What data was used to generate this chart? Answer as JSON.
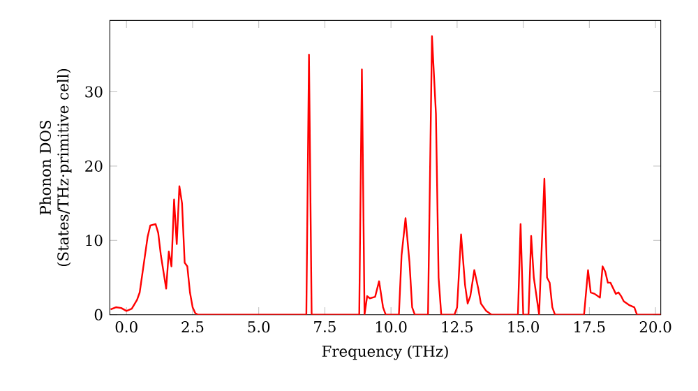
{
  "chart_data": {
    "type": "line",
    "xlabel": "Frequency (THz)",
    "ylabel": "Phonon DOS\n(States/THz·primitive cell)",
    "xlim": [
      -0.63,
      20.2
    ],
    "ylim": [
      0,
      39.6
    ],
    "xticks": [
      {
        "value": 0,
        "label": "0.0"
      },
      {
        "value": 2.5,
        "label": "2.5"
      },
      {
        "value": 5,
        "label": "5.0"
      },
      {
        "value": 7.5,
        "label": "7.5"
      },
      {
        "value": 10,
        "label": "10.0"
      },
      {
        "value": 12.5,
        "label": "12.5"
      },
      {
        "value": 15,
        "label": "15.0"
      },
      {
        "value": 17.5,
        "label": "17.5"
      },
      {
        "value": 20,
        "label": "20.0"
      }
    ],
    "yticks": [
      0,
      10,
      20,
      30
    ],
    "grid": false,
    "marker": "none",
    "line_style": "solid",
    "series": [
      {
        "color": "#ff0000",
        "x": [
          -0.6,
          -0.4,
          -0.2,
          0,
          0.2,
          0.4,
          0.5,
          0.7,
          0.8,
          0.9,
          1.1,
          1.2,
          1.3,
          1.5,
          1.6,
          1.7,
          1.8,
          1.9,
          2.0,
          2.1,
          2.2,
          2.3,
          2.4,
          2.5,
          2.6,
          2.7,
          6.8,
          6.9,
          7.0,
          8.8,
          8.9,
          9.0,
          9.1,
          9.2,
          9.4,
          9.55,
          9.7,
          9.8,
          10.3,
          10.4,
          10.55,
          10.7,
          10.8,
          10.9,
          11.4,
          11.55,
          11.7,
          11.8,
          11.9,
          12.4,
          12.5,
          12.65,
          12.8,
          12.9,
          13.0,
          13.15,
          13.3,
          13.4,
          13.6,
          13.8,
          14.8,
          14.9,
          15.0,
          15.2,
          15.3,
          15.4,
          15.6,
          15.8,
          15.9,
          16.0,
          16.1,
          16.2,
          17.3,
          17.45,
          17.55,
          17.7,
          17.9,
          18.0,
          18.1,
          18.2,
          18.3,
          18.5,
          18.6,
          18.7,
          18.8,
          19.0,
          19.2,
          19.3,
          20.2
        ],
        "values": [
          0.7,
          1.0,
          0.9,
          0.5,
          0.8,
          2,
          3,
          8,
          10.5,
          12,
          12.2,
          11,
          8,
          3.5,
          8.5,
          6.5,
          15.5,
          9.5,
          17.3,
          15,
          7,
          6.5,
          3,
          1,
          0.2,
          0,
          0,
          35,
          0,
          0,
          33,
          0,
          2.5,
          2.2,
          2.4,
          4.5,
          1,
          0,
          0,
          8,
          13,
          7,
          1,
          0,
          0,
          37.5,
          27,
          5,
          0,
          0,
          1,
          10.8,
          4,
          1.5,
          2.5,
          6,
          3.5,
          1.5,
          0.5,
          0,
          0,
          12.2,
          0,
          0,
          10.6,
          5,
          0,
          18.3,
          5,
          4.3,
          1,
          0,
          0,
          6,
          3,
          2.8,
          2.3,
          6.5,
          5.8,
          4.3,
          4.3,
          2.8,
          3,
          2.5,
          1.8,
          1.3,
          1,
          0,
          0
        ]
      }
    ]
  }
}
